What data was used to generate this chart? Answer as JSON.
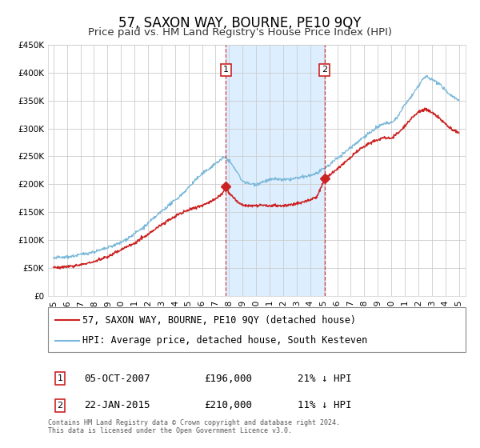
{
  "title": "57, SAXON WAY, BOURNE, PE10 9QY",
  "subtitle": "Price paid vs. HM Land Registry's House Price Index (HPI)",
  "ylim": [
    0,
    450000
  ],
  "yticks": [
    0,
    50000,
    100000,
    150000,
    200000,
    250000,
    300000,
    350000,
    400000,
    450000
  ],
  "ytick_labels": [
    "£0",
    "£50K",
    "£100K",
    "£150K",
    "£200K",
    "£250K",
    "£300K",
    "£350K",
    "£400K",
    "£450K"
  ],
  "xlim_start": 1994.6,
  "xlim_end": 2025.5,
  "xtick_years": [
    1995,
    1996,
    1997,
    1998,
    1999,
    2000,
    2001,
    2002,
    2003,
    2004,
    2005,
    2006,
    2007,
    2008,
    2009,
    2010,
    2011,
    2012,
    2013,
    2014,
    2015,
    2016,
    2017,
    2018,
    2019,
    2020,
    2021,
    2022,
    2023,
    2024,
    2025
  ],
  "hpi_color": "#7ab8d9",
  "price_color": "#cc2222",
  "background_color": "#ffffff",
  "plot_bg_color": "#ffffff",
  "grid_color": "#cccccc",
  "shade_color": "#ddeeff",
  "marker1_date": 2007.76,
  "marker1_price": 196000,
  "marker2_date": 2015.06,
  "marker2_price": 210000,
  "vline1_x": 2007.76,
  "vline2_x": 2015.06,
  "legend_line1": "57, SAXON WAY, BOURNE, PE10 9QY (detached house)",
  "legend_line2": "HPI: Average price, detached house, South Kesteven",
  "table_row1_num": "1",
  "table_row1_date": "05-OCT-2007",
  "table_row1_price": "£196,000",
  "table_row1_hpi": "21% ↓ HPI",
  "table_row2_num": "2",
  "table_row2_date": "22-JAN-2015",
  "table_row2_price": "£210,000",
  "table_row2_hpi": "11% ↓ HPI",
  "footer": "Contains HM Land Registry data © Crown copyright and database right 2024.\nThis data is licensed under the Open Government Licence v3.0.",
  "title_fontsize": 12,
  "subtitle_fontsize": 9.5,
  "tick_fontsize": 7.5,
  "legend_fontsize": 8.5,
  "table_fontsize": 9
}
